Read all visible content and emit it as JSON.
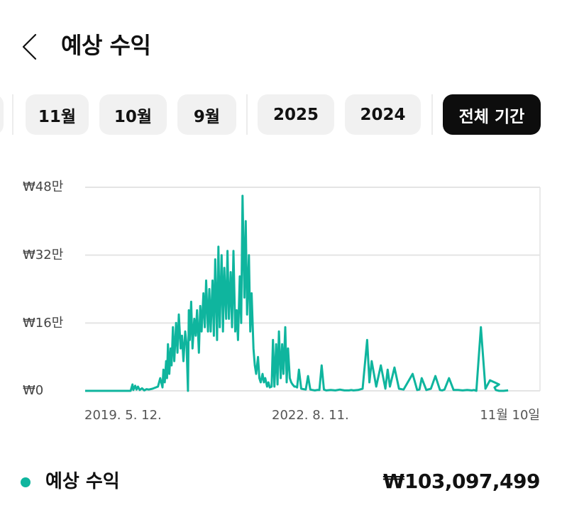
{
  "header": {
    "title": "예상 수익",
    "back_icon": "chevron-left-icon"
  },
  "filters": {
    "items": [
      {
        "label": "11월",
        "active": false
      },
      {
        "label": "10월",
        "active": false
      },
      {
        "label": "9월",
        "active": false
      },
      {
        "label": "2025",
        "active": false
      },
      {
        "label": "2024",
        "active": false
      },
      {
        "label": "전체 기간",
        "active": true
      }
    ]
  },
  "colors": {
    "accent": "#0fb59e",
    "grid": "#e4e4e4",
    "chip_bg": "#f1f1f1",
    "chip_active_bg": "#0d0d0d"
  },
  "legend": {
    "label": "예상 수익",
    "value": "₩103,097,499"
  },
  "chart_data": {
    "type": "line",
    "title": "예상 수익",
    "xlabel": "",
    "ylabel": "",
    "ylim": [
      0,
      480000
    ],
    "grid": true,
    "legend_position": "bottom",
    "y_ticks": [
      "₩0",
      "₩16만",
      "₩32만",
      "₩48만"
    ],
    "y_tick_values": [
      0,
      160000,
      320000,
      480000
    ],
    "x_ticks": [
      "2019. 5. 12.",
      "2022. 8. 11.",
      "11월 10일"
    ],
    "series": [
      {
        "name": "예상 수익",
        "x_fraction": [
          0.0,
          0.1,
          0.104,
          0.106,
          0.11,
          0.113,
          0.116,
          0.12,
          0.125,
          0.13,
          0.135,
          0.14,
          0.148,
          0.16,
          0.165,
          0.17,
          0.172,
          0.175,
          0.178,
          0.18,
          0.182,
          0.185,
          0.188,
          0.19,
          0.193,
          0.196,
          0.2,
          0.203,
          0.206,
          0.21,
          0.213,
          0.216,
          0.22,
          0.223,
          0.226,
          0.228,
          0.23,
          0.233,
          0.236,
          0.24,
          0.243,
          0.246,
          0.25,
          0.253,
          0.256,
          0.26,
          0.263,
          0.266,
          0.27,
          0.273,
          0.276,
          0.28,
          0.283,
          0.286,
          0.29,
          0.293,
          0.296,
          0.3,
          0.303,
          0.306,
          0.31,
          0.313,
          0.316,
          0.32,
          0.323,
          0.326,
          0.33,
          0.333,
          0.336,
          0.34,
          0.343,
          0.346,
          0.35,
          0.353,
          0.356,
          0.36,
          0.363,
          0.366,
          0.37,
          0.373,
          0.376,
          0.38,
          0.383,
          0.386,
          0.39,
          0.393,
          0.396,
          0.4,
          0.403,
          0.406,
          0.41,
          0.413,
          0.416,
          0.42,
          0.423,
          0.426,
          0.43,
          0.433,
          0.436,
          0.44,
          0.443,
          0.446,
          0.45,
          0.453,
          0.456,
          0.46,
          0.463,
          0.466,
          0.47,
          0.475,
          0.48,
          0.485,
          0.49,
          0.495,
          0.5,
          0.505,
          0.51,
          0.515,
          0.52,
          0.525,
          0.53,
          0.54,
          0.55,
          0.56,
          0.57,
          0.58,
          0.585,
          0.59,
          0.6,
          0.61,
          0.62,
          0.625,
          0.63,
          0.64,
          0.65,
          0.66,
          0.665,
          0.67,
          0.68,
          0.69,
          0.7,
          0.72,
          0.73,
          0.735,
          0.74,
          0.75,
          0.76,
          0.77,
          0.78,
          0.785,
          0.79,
          0.8,
          0.81,
          0.82,
          0.83,
          0.84,
          0.85,
          0.855,
          0.86,
          0.87,
          0.88,
          0.89,
          0.9,
          0.91,
          0.9,
          0.903,
          0.91,
          0.92,
          0.93,
          0.94,
          0.95,
          0.96,
          1.0
        ],
        "values": [
          0,
          0,
          15000,
          2000,
          12000,
          3000,
          10000,
          2000,
          6000,
          1000,
          4000,
          3000,
          5000,
          10000,
          30000,
          8000,
          50000,
          20000,
          70000,
          30000,
          110000,
          40000,
          100000,
          60000,
          150000,
          70000,
          160000,
          90000,
          180000,
          100000,
          130000,
          70000,
          140000,
          110000,
          0,
          190000,
          120000,
          210000,
          100000,
          170000,
          130000,
          190000,
          90000,
          200000,
          140000,
          230000,
          150000,
          260000,
          140000,
          240000,
          140000,
          260000,
          130000,
          310000,
          120000,
          340000,
          150000,
          320000,
          140000,
          290000,
          170000,
          330000,
          170000,
          280000,
          150000,
          330000,
          140000,
          190000,
          120000,
          270000,
          160000,
          460000,
          220000,
          400000,
          180000,
          320000,
          140000,
          230000,
          100000,
          60000,
          40000,
          80000,
          30000,
          20000,
          40000,
          20000,
          30000,
          10000,
          20000,
          8000,
          10000,
          120000,
          10000,
          110000,
          15000,
          140000,
          30000,
          110000,
          40000,
          150000,
          20000,
          100000,
          30000,
          20000,
          15000,
          10000,
          10000,
          8000,
          50000,
          5000,
          4000,
          3000,
          35000,
          3000,
          2000,
          1000,
          2000,
          2000,
          60000,
          3000,
          1000,
          2000,
          1000,
          3000,
          1000,
          1000,
          2000,
          1000,
          2000,
          5000,
          120000,
          20000,
          70000,
          10000,
          60000,
          5000,
          50000,
          10000,
          55000,
          5000,
          3000,
          40000,
          2000,
          3000,
          30000,
          2000,
          5000,
          35000,
          2000,
          1000,
          3000,
          30000,
          2000,
          2000,
          1000,
          2000,
          1000,
          2000,
          0,
          150000,
          5000,
          25000,
          20000,
          15000,
          8000,
          2000,
          0,
          0,
          1000
        ]
      }
    ]
  }
}
